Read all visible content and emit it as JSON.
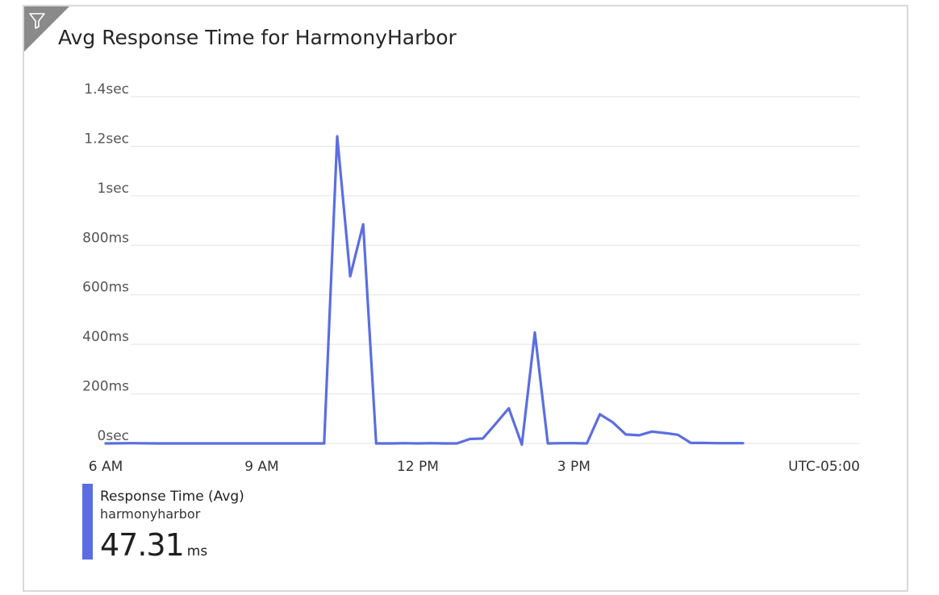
{
  "tile": {
    "title": "Avg Response Time for HarmonyHarbor",
    "filter_icon": "filter-icon"
  },
  "colors": {
    "series": "#5b6ee1",
    "grid": "#e3e3e3",
    "corner": "#8a8a8a"
  },
  "chart_data": {
    "type": "line",
    "title": "Avg Response Time for HarmonyHarbor",
    "xlabel": "",
    "ylabel": "",
    "x_unit": "hour of day (UTC-05:00)",
    "y_unit": "ms",
    "xlim": [
      5.55,
      20.5
    ],
    "ylim": [
      0,
      1400
    ],
    "y_ticks": [
      {
        "value": 0,
        "label": "0sec"
      },
      {
        "value": 200,
        "label": "200ms"
      },
      {
        "value": 400,
        "label": "400ms"
      },
      {
        "value": 600,
        "label": "600ms"
      },
      {
        "value": 800,
        "label": "800ms"
      },
      {
        "value": 1000,
        "label": "1sec"
      },
      {
        "value": 1200,
        "label": "1.2sec"
      },
      {
        "value": 1400,
        "label": "1.4sec"
      }
    ],
    "x_ticks": [
      {
        "value": 6,
        "label": "6 AM"
      },
      {
        "value": 9,
        "label": "9 AM"
      },
      {
        "value": 12,
        "label": "12 PM"
      },
      {
        "value": 15,
        "label": "3 PM"
      }
    ],
    "timezone_label": "UTC-05:00",
    "grid": true,
    "series": [
      {
        "name": "Response Time (Avg)",
        "x": [
          6.0,
          6.5,
          7.0,
          7.5,
          8.0,
          8.5,
          9.0,
          9.5,
          10.0,
          10.2,
          10.45,
          10.7,
          10.95,
          11.2,
          11.5,
          11.75,
          12.0,
          12.25,
          12.5,
          12.75,
          13.0,
          13.25,
          13.5,
          13.75,
          14.0,
          14.25,
          14.5,
          14.75,
          15.0,
          15.25,
          15.5,
          15.75,
          16.0,
          16.25,
          16.5,
          16.75,
          17.0,
          17.25,
          17.5,
          17.75,
          18.0,
          18.25
        ],
        "y": [
          0,
          1,
          0,
          0,
          0,
          0,
          0,
          0,
          0,
          0,
          1240,
          675,
          885,
          0,
          0,
          1,
          0,
          1,
          0,
          0,
          18,
          20,
          80,
          142,
          -5,
          448,
          0,
          1,
          1,
          0,
          118,
          85,
          36,
          33,
          48,
          42,
          35,
          2,
          2,
          1,
          1,
          1
        ]
      }
    ]
  },
  "legend": {
    "metric": "Response Time (Avg)",
    "resource": "harmonyharbor",
    "value": "47.31",
    "unit": "ms"
  }
}
